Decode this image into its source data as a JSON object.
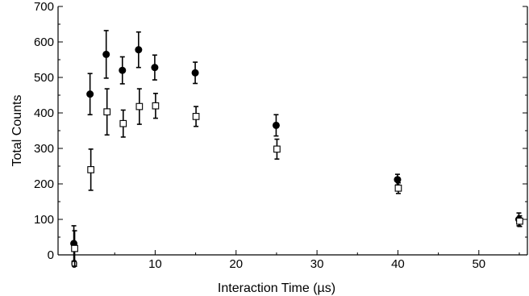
{
  "chart_data": {
    "type": "scatter",
    "xlabel": "Interaction Time (µs)",
    "ylabel": "Total Counts",
    "xlim": [
      -2,
      56
    ],
    "ylim": [
      0,
      700
    ],
    "xticks": [
      0,
      10,
      20,
      30,
      40,
      50
    ],
    "yticks": [
      0,
      100,
      200,
      300,
      400,
      500,
      600,
      700
    ],
    "grid": false,
    "legend": "none",
    "series": [
      {
        "marker": "filled-circle",
        "color": "#000000",
        "points": [
          {
            "x": 0,
            "y": 32,
            "err": 50
          },
          {
            "x": 2,
            "y": 453,
            "err": 58
          },
          {
            "x": 4,
            "y": 565,
            "err": 67
          },
          {
            "x": 6,
            "y": 520,
            "err": 38
          },
          {
            "x": 8,
            "y": 578,
            "err": 50
          },
          {
            "x": 10,
            "y": 528,
            "err": 35
          },
          {
            "x": 15,
            "y": 513,
            "err": 30
          },
          {
            "x": 25,
            "y": 365,
            "err": 30
          },
          {
            "x": 40,
            "y": 212,
            "err": 15
          },
          {
            "x": 55,
            "y": 100,
            "err": 18
          }
        ]
      },
      {
        "marker": "open-square",
        "color": "#000000",
        "points": [
          {
            "x": 0,
            "y": 18,
            "err": 50
          },
          {
            "x": 2,
            "y": 240,
            "err": 58
          },
          {
            "x": 4,
            "y": 403,
            "err": 65
          },
          {
            "x": 6,
            "y": 370,
            "err": 38
          },
          {
            "x": 8,
            "y": 418,
            "err": 50
          },
          {
            "x": 10,
            "y": 420,
            "err": 35
          },
          {
            "x": 15,
            "y": 390,
            "err": 28
          },
          {
            "x": 25,
            "y": 298,
            "err": 28
          },
          {
            "x": 40,
            "y": 188,
            "err": 15
          },
          {
            "x": 55,
            "y": 95,
            "err": 15
          }
        ]
      }
    ]
  }
}
